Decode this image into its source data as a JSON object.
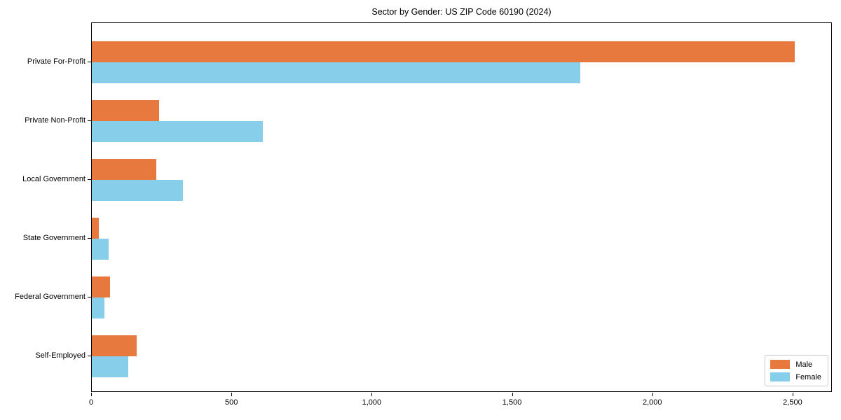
{
  "title": "Sector by Gender: US ZIP Code 60190 (2024)",
  "colors": {
    "male": "#E8793E",
    "female": "#87CEEB",
    "axis": "#000000",
    "legend_border": "#cccccc",
    "background": "#ffffff"
  },
  "legend": {
    "position": "lower right",
    "items": [
      {
        "label": "Male",
        "color": "#E8793E"
      },
      {
        "label": "Female",
        "#comment": "",
        "color": "#87CEEB"
      }
    ]
  },
  "chart_data": {
    "type": "bar",
    "orientation": "horizontal",
    "title": "Sector by Gender: US ZIP Code 60190 (2024)",
    "categories": [
      "Private For-Profit",
      "Private Non-Profit",
      "Local Government",
      "State Government",
      "Federal Government",
      "Self-Employed"
    ],
    "series": [
      {
        "name": "Male",
        "color": "#E8793E",
        "values": [
          2510,
          240,
          230,
          25,
          65,
          160
        ]
      },
      {
        "name": "Female",
        "color": "#87CEEB",
        "values": [
          1745,
          610,
          325,
          60,
          45,
          130
        ]
      }
    ],
    "xlabel": "",
    "ylabel": "",
    "xlim": [
      0,
      2640
    ],
    "xticks": [
      0,
      500,
      1000,
      1500,
      2000,
      2500
    ],
    "xtick_labels": [
      "0",
      "500",
      "1,000",
      "1,500",
      "2,000",
      "2,500"
    ],
    "grid": false,
    "legend_position": "lower right"
  }
}
